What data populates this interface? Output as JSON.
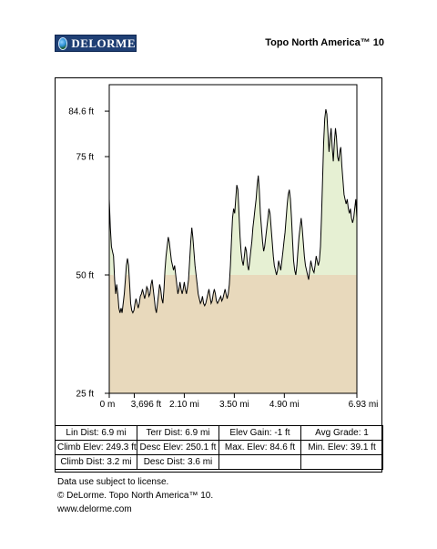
{
  "header": {
    "logo_text": "DELORME",
    "product": "Topo North America™ 10"
  },
  "chart_data": {
    "type": "area",
    "y_unit": "ft",
    "x_unit": "mi",
    "ylim": [
      25,
      90
    ],
    "xlim": [
      0,
      6.93
    ],
    "y_tick_labels": [
      "84.6 ft",
      "75 ft",
      "50 ft",
      "25 ft"
    ],
    "y_tick_values": [
      84.6,
      75,
      50,
      25
    ],
    "x_tick_labels": [
      "0 m",
      "3,696 ft",
      "2.10 mi",
      "3.50 mi",
      "4.90 mi",
      "6.93 mi"
    ],
    "x_tick_values": [
      0,
      0.7,
      2.1,
      3.5,
      4.9,
      6.93
    ],
    "baseline": 50,
    "fill_below": "#e8d9bc",
    "fill_above": "#e6f0d3",
    "profile": [
      [
        0.0,
        66.0
      ],
      [
        0.03,
        60.0
      ],
      [
        0.06,
        56.0
      ],
      [
        0.09,
        55.0
      ],
      [
        0.12,
        54.0
      ],
      [
        0.15,
        49.0
      ],
      [
        0.18,
        46.0
      ],
      [
        0.21,
        48.0
      ],
      [
        0.24,
        46.0
      ],
      [
        0.27,
        43.0
      ],
      [
        0.3,
        42.0
      ],
      [
        0.33,
        43.0
      ],
      [
        0.36,
        42.0
      ],
      [
        0.39,
        44.0
      ],
      [
        0.42,
        46.0
      ],
      [
        0.45,
        49.0
      ],
      [
        0.48,
        52.0
      ],
      [
        0.51,
        53.5
      ],
      [
        0.54,
        52.0
      ],
      [
        0.57,
        48.0
      ],
      [
        0.6,
        44.0
      ],
      [
        0.63,
        42.5
      ],
      [
        0.66,
        42.0
      ],
      [
        0.69,
        42.5
      ],
      [
        0.72,
        44.0
      ],
      [
        0.75,
        45.0
      ],
      [
        0.78,
        44.0
      ],
      [
        0.81,
        43.0
      ],
      [
        0.84,
        44.0
      ],
      [
        0.87,
        45.5
      ],
      [
        0.9,
        46.0
      ],
      [
        0.93,
        47.0
      ],
      [
        0.96,
        46.0
      ],
      [
        0.99,
        45.0
      ],
      [
        1.02,
        46.0
      ],
      [
        1.05,
        47.5
      ],
      [
        1.08,
        47.0
      ],
      [
        1.11,
        45.5
      ],
      [
        1.14,
        46.0
      ],
      [
        1.17,
        48.0
      ],
      [
        1.2,
        49.0
      ],
      [
        1.23,
        47.0
      ],
      [
        1.26,
        45.0
      ],
      [
        1.29,
        43.0
      ],
      [
        1.32,
        42.0
      ],
      [
        1.35,
        44.0
      ],
      [
        1.38,
        46.0
      ],
      [
        1.41,
        48.0
      ],
      [
        1.44,
        47.0
      ],
      [
        1.47,
        45.0
      ],
      [
        1.5,
        44.0
      ],
      [
        1.53,
        47.0
      ],
      [
        1.56,
        51.0
      ],
      [
        1.59,
        54.0
      ],
      [
        1.62,
        56.0
      ],
      [
        1.65,
        58.0
      ],
      [
        1.68,
        57.0
      ],
      [
        1.71,
        55.0
      ],
      [
        1.74,
        53.0
      ],
      [
        1.77,
        52.0
      ],
      [
        1.8,
        51.0
      ],
      [
        1.83,
        52.0
      ],
      [
        1.86,
        50.0
      ],
      [
        1.89,
        48.0
      ],
      [
        1.92,
        46.0
      ],
      [
        1.95,
        47.0
      ],
      [
        1.98,
        48.5
      ],
      [
        2.01,
        47.0
      ],
      [
        2.04,
        46.0
      ],
      [
        2.07,
        47.0
      ],
      [
        2.1,
        48.5
      ],
      [
        2.13,
        47.0
      ],
      [
        2.16,
        46.0
      ],
      [
        2.19,
        47.5
      ],
      [
        2.22,
        49.0
      ],
      [
        2.25,
        53.0
      ],
      [
        2.28,
        57.0
      ],
      [
        2.31,
        60.0
      ],
      [
        2.34,
        58.0
      ],
      [
        2.37,
        55.0
      ],
      [
        2.4,
        52.0
      ],
      [
        2.43,
        50.0
      ],
      [
        2.46,
        48.0
      ],
      [
        2.49,
        46.0
      ],
      [
        2.52,
        45.0
      ],
      [
        2.55,
        44.0
      ],
      [
        2.58,
        44.5
      ],
      [
        2.61,
        45.5
      ],
      [
        2.64,
        44.0
      ],
      [
        2.67,
        43.5
      ],
      [
        2.7,
        44.0
      ],
      [
        2.73,
        45.0
      ],
      [
        2.76,
        46.0
      ],
      [
        2.79,
        47.0
      ],
      [
        2.82,
        45.5
      ],
      [
        2.85,
        44.0
      ],
      [
        2.88,
        44.5
      ],
      [
        2.91,
        46.0
      ],
      [
        2.94,
        47.0
      ],
      [
        2.97,
        46.0
      ],
      [
        3.0,
        44.5
      ],
      [
        3.03,
        44.0
      ],
      [
        3.06,
        44.5
      ],
      [
        3.09,
        45.0
      ],
      [
        3.12,
        45.5
      ],
      [
        3.15,
        44.5
      ],
      [
        3.18,
        45.0
      ],
      [
        3.21,
        46.0
      ],
      [
        3.24,
        47.0
      ],
      [
        3.27,
        46.0
      ],
      [
        3.3,
        45.0
      ],
      [
        3.33,
        46.0
      ],
      [
        3.36,
        48.0
      ],
      [
        3.39,
        52.0
      ],
      [
        3.42,
        57.0
      ],
      [
        3.45,
        62.0
      ],
      [
        3.48,
        64.0
      ],
      [
        3.51,
        63.0
      ],
      [
        3.54,
        66.0
      ],
      [
        3.57,
        69.0
      ],
      [
        3.6,
        68.0
      ],
      [
        3.63,
        63.0
      ],
      [
        3.66,
        58.0
      ],
      [
        3.69,
        55.0
      ],
      [
        3.72,
        53.0
      ],
      [
        3.75,
        52.0
      ],
      [
        3.78,
        54.0
      ],
      [
        3.81,
        56.0
      ],
      [
        3.84,
        55.0
      ],
      [
        3.87,
        52.0
      ],
      [
        3.9,
        51.0
      ],
      [
        3.93,
        53.0
      ],
      [
        3.96,
        55.0
      ],
      [
        3.99,
        57.0
      ],
      [
        4.02,
        60.0
      ],
      [
        4.05,
        62.0
      ],
      [
        4.08,
        64.0
      ],
      [
        4.11,
        66.0
      ],
      [
        4.14,
        69.0
      ],
      [
        4.17,
        71.0
      ],
      [
        4.2,
        68.0
      ],
      [
        4.23,
        63.0
      ],
      [
        4.26,
        60.0
      ],
      [
        4.29,
        57.0
      ],
      [
        4.32,
        55.0
      ],
      [
        4.35,
        56.0
      ],
      [
        4.38,
        58.0
      ],
      [
        4.41,
        60.0
      ],
      [
        4.44,
        62.0
      ],
      [
        4.47,
        64.0
      ],
      [
        4.5,
        63.0
      ],
      [
        4.53,
        60.0
      ],
      [
        4.56,
        57.0
      ],
      [
        4.59,
        54.0
      ],
      [
        4.62,
        52.0
      ],
      [
        4.65,
        51.0
      ],
      [
        4.68,
        50.0
      ],
      [
        4.71,
        51.0
      ],
      [
        4.74,
        53.0
      ],
      [
        4.77,
        52.0
      ],
      [
        4.8,
        51.0
      ],
      [
        4.83,
        53.0
      ],
      [
        4.86,
        55.0
      ],
      [
        4.89,
        57.0
      ],
      [
        4.92,
        59.0
      ],
      [
        4.95,
        62.0
      ],
      [
        4.98,
        65.0
      ],
      [
        5.01,
        67.0
      ],
      [
        5.04,
        68.0
      ],
      [
        5.07,
        66.0
      ],
      [
        5.1,
        62.0
      ],
      [
        5.13,
        57.0
      ],
      [
        5.16,
        53.0
      ],
      [
        5.19,
        51.0
      ],
      [
        5.22,
        50.0
      ],
      [
        5.25,
        52.0
      ],
      [
        5.28,
        55.0
      ],
      [
        5.31,
        58.0
      ],
      [
        5.34,
        60.0
      ],
      [
        5.37,
        62.0
      ],
      [
        5.4,
        60.0
      ],
      [
        5.43,
        57.0
      ],
      [
        5.46,
        54.0
      ],
      [
        5.49,
        52.0
      ],
      [
        5.52,
        51.0
      ],
      [
        5.55,
        50.0
      ],
      [
        5.58,
        49.0
      ],
      [
        5.61,
        51.0
      ],
      [
        5.64,
        53.0
      ],
      [
        5.67,
        52.0
      ],
      [
        5.7,
        51.0
      ],
      [
        5.73,
        50.5
      ],
      [
        5.76,
        52.0
      ],
      [
        5.79,
        54.0
      ],
      [
        5.82,
        53.0
      ],
      [
        5.85,
        52.0
      ],
      [
        5.88,
        53.0
      ],
      [
        5.91,
        56.0
      ],
      [
        5.94,
        62.0
      ],
      [
        5.97,
        70.0
      ],
      [
        6.0,
        78.0
      ],
      [
        6.03,
        83.0
      ],
      [
        6.06,
        85.0
      ],
      [
        6.09,
        84.0
      ],
      [
        6.12,
        80.0
      ],
      [
        6.15,
        76.0
      ],
      [
        6.18,
        79.0
      ],
      [
        6.21,
        81.0
      ],
      [
        6.24,
        77.0
      ],
      [
        6.27,
        74.0
      ],
      [
        6.3,
        78.0
      ],
      [
        6.33,
        81.0
      ],
      [
        6.36,
        79.0
      ],
      [
        6.39,
        75.0
      ],
      [
        6.42,
        74.0
      ],
      [
        6.45,
        76.0
      ],
      [
        6.48,
        77.0
      ],
      [
        6.51,
        73.0
      ],
      [
        6.54,
        70.0
      ],
      [
        6.57,
        67.0
      ],
      [
        6.6,
        66.0
      ],
      [
        6.63,
        65.0
      ],
      [
        6.66,
        66.0
      ],
      [
        6.69,
        64.0
      ],
      [
        6.72,
        63.0
      ],
      [
        6.75,
        64.0
      ],
      [
        6.78,
        62.0
      ],
      [
        6.81,
        61.0
      ],
      [
        6.84,
        62.0
      ],
      [
        6.87,
        64.0
      ],
      [
        6.9,
        66.0
      ],
      [
        6.93,
        62.0
      ]
    ]
  },
  "stats": {
    "rows": [
      [
        "Lin Dist:  6.9 mi",
        "Terr Dist:  6.9 mi",
        "Elev Gain:  -1 ft",
        "Avg Grade:  1"
      ],
      [
        "Climb Elev:  249.3 ft",
        "Desc Elev:  250.1 ft",
        "Max. Elev:  84.6 ft",
        "Min. Elev:  39.1 ft"
      ],
      [
        "Climb Dist:  3.2 mi",
        "Desc Dist:  3.6 mi",
        "",
        ""
      ]
    ]
  },
  "footer": {
    "line1": "Data use subject to license.",
    "line2": "© DeLorme. Topo North America™ 10.",
    "line3": "www.delorme.com"
  }
}
